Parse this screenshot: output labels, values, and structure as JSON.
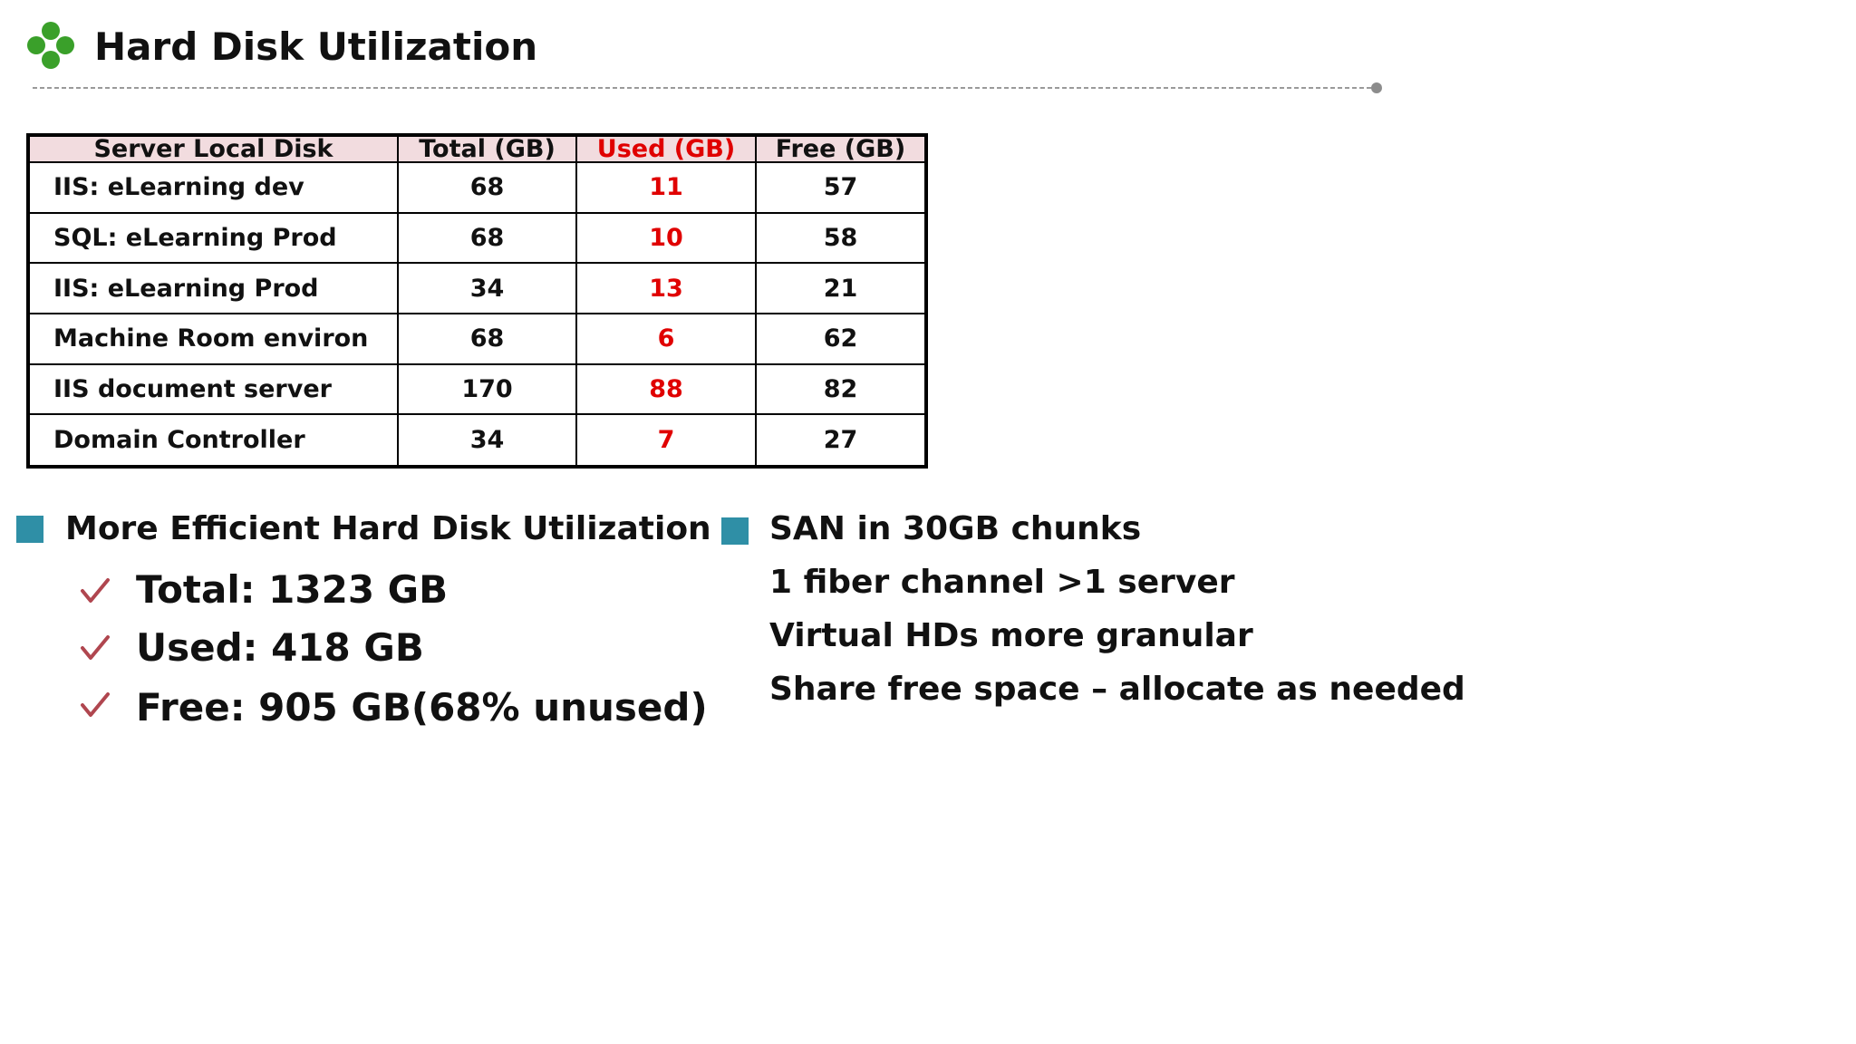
{
  "header": {
    "title": "Hard Disk Utilization",
    "logo_icon": "four-green-circles-icon",
    "accent_color": "#3aa02a"
  },
  "table": {
    "columns": [
      "Server Local Disk",
      "Total (GB)",
      "Used (GB)",
      "Free (GB)"
    ],
    "rows": [
      {
        "name": "IIS: eLearning dev",
        "total": "68",
        "used": "11",
        "free": "57"
      },
      {
        "name": "SQL: eLearning Prod",
        "total": "68",
        "used": "10",
        "free": "58"
      },
      {
        "name": "IIS: eLearning Prod",
        "total": "34",
        "used": "13",
        "free": "21"
      },
      {
        "name": "Machine Room environ",
        "total": "68",
        "used": "6",
        "free": "62"
      },
      {
        "name": "IIS document server",
        "total": "170",
        "used": "88",
        "free": "82"
      },
      {
        "name": "Domain Controller",
        "total": "34",
        "used": "7",
        "free": "27"
      }
    ],
    "header_bg": "#f2dcdf",
    "used_color": "#e00000"
  },
  "left_panel": {
    "heading": "More Efficient Hard Disk Utilization",
    "items": [
      "Total: 1323 GB",
      "Used: 418 GB",
      "Free: 905 GB(68% unused)"
    ],
    "bullet_icon": "square-bullet-icon",
    "item_icon": "checkmark-icon",
    "bullet_color": "#2f8fa6",
    "check_color": "#b0464f"
  },
  "right_panel": {
    "heading": "SAN in 30GB chunks",
    "lines": [
      "1 fiber channel >1 server",
      "Virtual HDs more granular",
      "Share free space – allocate as needed"
    ],
    "bullet_icon": "square-bullet-icon"
  }
}
